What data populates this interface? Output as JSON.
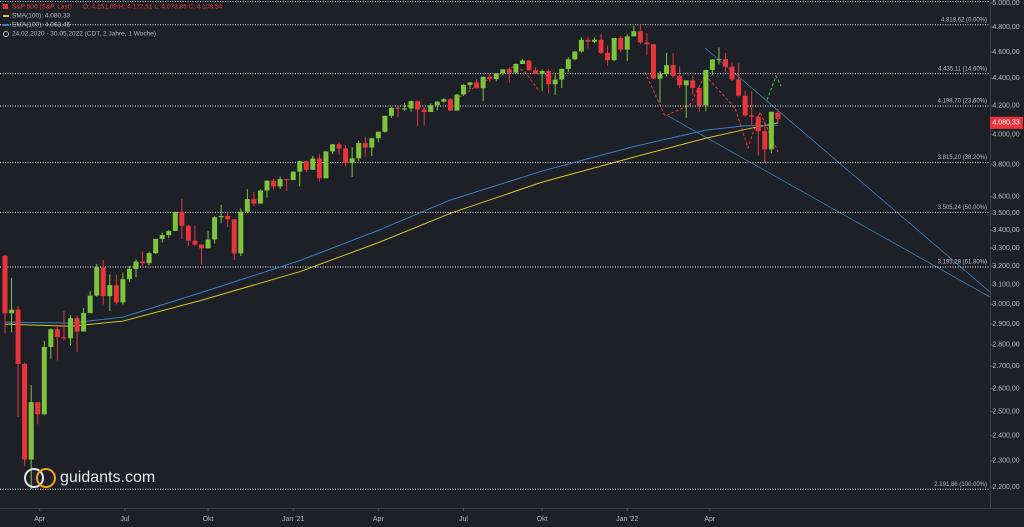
{
  "chart_data": {
    "type": "candlestick",
    "header": {
      "instrument": "S&P 500 (S&P, Last)",
      "ohlc": "O: 4.151,09  H: 4.177,51  L: 4.073,85  C: 4.108,54",
      "range": "24.02.2020 - 30.05.2022  (CDT, 2 Jahre, 1 Woche)"
    },
    "logo": "guidants.com",
    "log_scale": true,
    "up_color": "#7cc43a",
    "down_color": "#e8353b",
    "ylim": [
      2134,
      5000
    ],
    "yticks": [
      {
        "value": 5000,
        "label": "5.000,00"
      },
      {
        "value": 4800,
        "label": "4.800,00"
      },
      {
        "value": 4600,
        "label": "4.600,00"
      },
      {
        "value": 4400,
        "label": "4.400,00"
      },
      {
        "value": 4200,
        "label": "4.200,00"
      },
      {
        "value": 4000,
        "label": "4.000,00"
      },
      {
        "value": 3800,
        "label": "3.800,00"
      },
      {
        "value": 3600,
        "label": "3.600,00"
      },
      {
        "value": 3500,
        "label": "3.500,00"
      },
      {
        "value": 3400,
        "label": "3.400,00"
      },
      {
        "value": 3300,
        "label": "3.300,00"
      },
      {
        "value": 3200,
        "label": "3.200,00"
      },
      {
        "value": 3100,
        "label": "3.100,00"
      },
      {
        "value": 3000,
        "label": "3.000,00"
      },
      {
        "value": 2900,
        "label": "2.900,00"
      },
      {
        "value": 2800,
        "label": "2.800,00"
      },
      {
        "value": 2700,
        "label": "2.700,00"
      },
      {
        "value": 2600,
        "label": "2.600,00"
      },
      {
        "value": 2500,
        "label": "2.500,00"
      },
      {
        "value": 2400,
        "label": "2.400,00"
      },
      {
        "value": 2300,
        "label": "2.300,00"
      },
      {
        "value": 2200,
        "label": "2.200,00"
      }
    ],
    "xticks": [
      {
        "value": 5.3,
        "label": "Apr"
      },
      {
        "value": 18.3,
        "label": "Jul"
      },
      {
        "value": 31,
        "label": "Okt"
      },
      {
        "value": 44,
        "label": "Jan '21"
      },
      {
        "value": 57,
        "label": "Apr"
      },
      {
        "value": 70,
        "label": "Jul"
      },
      {
        "value": 82,
        "label": "Okt"
      },
      {
        "value": 95,
        "label": "Jan '22"
      },
      {
        "value": 107.6,
        "label": "Apr"
      }
    ],
    "levels": [
      {
        "value": 4818.62,
        "label": "4.818,62 (0.00%)"
      },
      {
        "value": 4435.11,
        "label": "4.435,11 (14.60%)"
      },
      {
        "value": 4198.7,
        "label": "4.198,70 (23.60%)"
      },
      {
        "value": 3815.2,
        "label": "3.815,20 (38.20%)"
      },
      {
        "value": 3505.24,
        "label": "3.505,24 (50.00%)"
      },
      {
        "value": 3195.28,
        "label": "3.195,28 (61.80%)"
      },
      {
        "value": 2191.86,
        "label": "2.191,86 (100.00%)"
      }
    ],
    "price_tag": {
      "value": 4080.33,
      "label": "4.080,33",
      "color": "#e8353b"
    },
    "series": [
      {
        "name": "SMA(100): 4.080,33",
        "color": "#d8c62a",
        "x": [
          0,
          10,
          18,
          30,
          45,
          57,
          68,
          82,
          96,
          107,
          113,
          118
        ],
        "values": [
          2900,
          2890,
          2915,
          3020,
          3170,
          3330,
          3500,
          3690,
          3850,
          3975,
          4035,
          4080.33
        ]
      },
      {
        "name": "EMA(100): 4.063,46",
        "color": "#3a7fc1",
        "x": [
          0,
          10,
          18,
          30,
          45,
          57,
          68,
          82,
          96,
          107,
          113,
          118
        ],
        "values": [
          2910,
          2905,
          2935,
          3060,
          3230,
          3400,
          3580,
          3760,
          3920,
          4030,
          4060,
          4063.46
        ]
      }
    ],
    "candles": [
      [
        3257,
        3260,
        2855,
        2954
      ],
      [
        2954,
        3137,
        2860,
        2972
      ],
      [
        2972,
        2990,
        2478,
        2711
      ],
      [
        2711,
        2718,
        2280,
        2305
      ],
      [
        2305,
        2615,
        2192,
        2541
      ],
      [
        2541,
        2541,
        2447,
        2489
      ],
      [
        2489,
        2818,
        2485,
        2790
      ],
      [
        2790,
        2880,
        2735,
        2875
      ],
      [
        2875,
        2890,
        2727,
        2837
      ],
      [
        2837,
        2965,
        2820,
        2831
      ],
      [
        2831,
        2945,
        2797,
        2930
      ],
      [
        2930,
        2945,
        2767,
        2864
      ],
      [
        2864,
        2980,
        2864,
        2955
      ],
      [
        2955,
        3068,
        2955,
        3044
      ],
      [
        3044,
        3212,
        3039,
        3194
      ],
      [
        3194,
        3233,
        2999,
        3041
      ],
      [
        3041,
        3155,
        2966,
        3098
      ],
      [
        3098,
        3155,
        2999,
        3009
      ],
      [
        3009,
        3165,
        2999,
        3130
      ],
      [
        3130,
        3200,
        3115,
        3185
      ],
      [
        3185,
        3236,
        3140,
        3225
      ],
      [
        3225,
        3280,
        3201,
        3216
      ],
      [
        3216,
        3280,
        3205,
        3271
      ],
      [
        3271,
        3352,
        3266,
        3351
      ],
      [
        3351,
        3387,
        3331,
        3373
      ],
      [
        3373,
        3400,
        3355,
        3397
      ],
      [
        3397,
        3509,
        3397,
        3508
      ],
      [
        3508,
        3588,
        3350,
        3427
      ],
      [
        3427,
        3430,
        3310,
        3341
      ],
      [
        3341,
        3428,
        3313,
        3319
      ],
      [
        3319,
        3320,
        3209,
        3298
      ],
      [
        3298,
        3397,
        3298,
        3348
      ],
      [
        3348,
        3482,
        3324,
        3477
      ],
      [
        3477,
        3550,
        3441,
        3484
      ],
      [
        3484,
        3502,
        3419,
        3465
      ],
      [
        3465,
        3466,
        3234,
        3270
      ],
      [
        3270,
        3529,
        3255,
        3510
      ],
      [
        3510,
        3646,
        3500,
        3585
      ],
      [
        3585,
        3629,
        3543,
        3558
      ],
      [
        3558,
        3645,
        3558,
        3638
      ],
      [
        3638,
        3702,
        3594,
        3699
      ],
      [
        3699,
        3712,
        3645,
        3663
      ],
      [
        3663,
        3726,
        3647,
        3709
      ],
      [
        3709,
        3711,
        3636,
        3703
      ],
      [
        3703,
        3760,
        3703,
        3756
      ],
      [
        3756,
        3827,
        3663,
        3824
      ],
      [
        3824,
        3828,
        3750,
        3768
      ],
      [
        3768,
        3859,
        3768,
        3841
      ],
      [
        3841,
        3870,
        3694,
        3714
      ],
      [
        3714,
        3890,
        3714,
        3887
      ],
      [
        3887,
        3937,
        3870,
        3934
      ],
      [
        3934,
        3950,
        3865,
        3907
      ],
      [
        3907,
        3928,
        3788,
        3811
      ],
      [
        3811,
        3915,
        3723,
        3842
      ],
      [
        3842,
        3960,
        3824,
        3943
      ],
      [
        3943,
        3983,
        3853,
        3913
      ],
      [
        3913,
        3978,
        3857,
        3975
      ],
      [
        3975,
        4020,
        3950,
        4019
      ],
      [
        4019,
        4130,
        4013,
        4129
      ],
      [
        4129,
        4191,
        4115,
        4185
      ],
      [
        4185,
        4195,
        4118,
        4180
      ],
      [
        4180,
        4219,
        4165,
        4181
      ],
      [
        4181,
        4238,
        4157,
        4233
      ],
      [
        4233,
        4237,
        4057,
        4174
      ],
      [
        4174,
        4189,
        4062,
        4156
      ],
      [
        4156,
        4218,
        4156,
        4204
      ],
      [
        4204,
        4234,
        4167,
        4230
      ],
      [
        4230,
        4255,
        4223,
        4247
      ],
      [
        4247,
        4256,
        4165,
        4166
      ],
      [
        4166,
        4286,
        4165,
        4281
      ],
      [
        4281,
        4356,
        4271,
        4352
      ],
      [
        4352,
        4372,
        4320,
        4370
      ],
      [
        4370,
        4394,
        4322,
        4327
      ],
      [
        4327,
        4415,
        4233,
        4412
      ],
      [
        4412,
        4430,
        4374,
        4395
      ],
      [
        4395,
        4441,
        4378,
        4437
      ],
      [
        4437,
        4468,
        4425,
        4468
      ],
      [
        4468,
        4482,
        4367,
        4442
      ],
      [
        4442,
        4513,
        4442,
        4509
      ],
      [
        4509,
        4546,
        4509,
        4535
      ],
      [
        4535,
        4542,
        4459,
        4460
      ],
      [
        4460,
        4486,
        4429,
        4433
      ],
      [
        4433,
        4465,
        4305,
        4455
      ],
      [
        4455,
        4466,
        4288,
        4357
      ],
      [
        4357,
        4429,
        4278,
        4391
      ],
      [
        4391,
        4475,
        4329,
        4471
      ],
      [
        4471,
        4560,
        4447,
        4545
      ],
      [
        4545,
        4608,
        4537,
        4605
      ],
      [
        4605,
        4718,
        4595,
        4697
      ],
      [
        4697,
        4719,
        4630,
        4682
      ],
      [
        4682,
        4717,
        4672,
        4698
      ],
      [
        4698,
        4744,
        4585,
        4595
      ],
      [
        4595,
        4652,
        4495,
        4538
      ],
      [
        4538,
        4713,
        4531,
        4712
      ],
      [
        4712,
        4731,
        4600,
        4620
      ],
      [
        4620,
        4740,
        4531,
        4725
      ],
      [
        4725,
        4808,
        4725,
        4766
      ],
      [
        4766,
        4819,
        4662,
        4677
      ],
      [
        4677,
        4749,
        4582,
        4662
      ],
      [
        4662,
        4664,
        4395,
        4398
      ],
      [
        4398,
        4453,
        4223,
        4432
      ],
      [
        4432,
        4595,
        4414,
        4500
      ],
      [
        4500,
        4590,
        4402,
        4418
      ],
      [
        4418,
        4490,
        4328,
        4349
      ],
      [
        4349,
        4385,
        4115,
        4385
      ],
      [
        4385,
        4416,
        4284,
        4329
      ],
      [
        4329,
        4329,
        4157,
        4204
      ],
      [
        4204,
        4465,
        4162,
        4463
      ],
      [
        4463,
        4546,
        4424,
        4543
      ],
      [
        4543,
        4637,
        4506,
        4546
      ],
      [
        4546,
        4594,
        4450,
        4488
      ],
      [
        4488,
        4521,
        4381,
        4392
      ],
      [
        4392,
        4513,
        4267,
        4272
      ],
      [
        4272,
        4308,
        4124,
        4132
      ],
      [
        4132,
        4307,
        4063,
        4123
      ],
      [
        4123,
        4132,
        3859,
        4023
      ],
      [
        4023,
        4091,
        3810,
        3901
      ],
      [
        3901,
        4158,
        3875,
        4158
      ],
      [
        4151.09,
        4177.51,
        4073.85,
        4108.54
      ]
    ]
  }
}
